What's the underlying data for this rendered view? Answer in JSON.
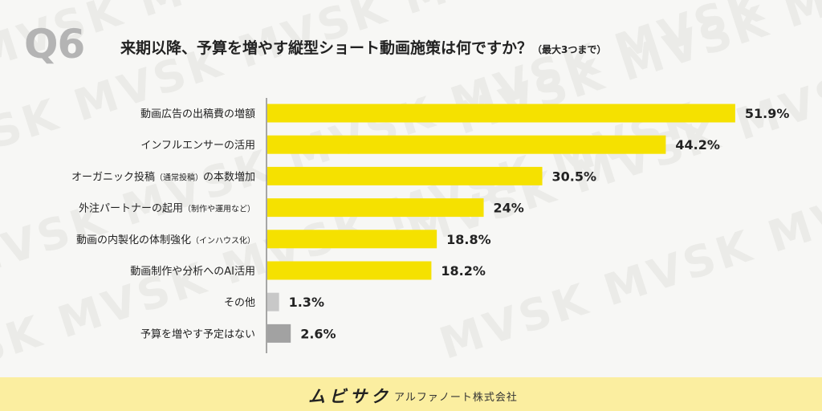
{
  "question_number": "Q6",
  "title": "来期以降、予算を増やす縦型ショート動画施策は何ですか？",
  "title_note": "（最大3つまで）",
  "watermark_text": "MVSK MVSK MVSK MVSK MVSK",
  "footer": {
    "brand": "ムビサク",
    "company": "アルファノート株式会社"
  },
  "colors": {
    "primary_bar": "#f5e100",
    "secondary_bar": "#c8c8c8",
    "last_bar": "#a2a2a2",
    "footer_bg": "#fbeea0"
  },
  "chart_data": {
    "type": "bar",
    "orientation": "horizontal",
    "title": "来期以降、予算を増やす縦型ショート動画施策は何ですか？（最大3つまで）",
    "categories": [
      "動画広告の出稿費の増額",
      "インフルエンサーの活用",
      "オーガニック投稿（通常投稿）の本数増加",
      "外注パートナーの起用（制作や運用など）",
      "動画の内製化の体制強化（インハウス化）",
      "動画制作や分析へのAI活用",
      "その他",
      "予算を増やす予定はない"
    ],
    "category_lines": [
      {
        "main": "動画広告の出稿費の増額",
        "sub": ""
      },
      {
        "main": "インフルエンサーの活用",
        "sub": ""
      },
      {
        "main": "オーガニック投稿",
        "sub": "（通常投稿）",
        "tail": "の本数増加"
      },
      {
        "main": "外注パートナーの起用",
        "sub": "（制作や運用など）"
      },
      {
        "main": "動画の内製化の体制強化",
        "sub": "（インハウス化）"
      },
      {
        "main": "動画制作や分析へのAI活用",
        "sub": ""
      },
      {
        "main": "その他",
        "sub": ""
      },
      {
        "main": "予算を増やす予定はない",
        "sub": ""
      }
    ],
    "values": [
      51.9,
      44.2,
      30.5,
      24,
      18.8,
      18.2,
      1.3,
      2.6
    ],
    "value_labels": [
      "51.9%",
      "44.2%",
      "30.5%",
      "24%",
      "18.8%",
      "18.2%",
      "1.3%",
      "2.6%"
    ],
    "unit": "%",
    "xlim": [
      0,
      52
    ],
    "grid": false,
    "legend": "none"
  }
}
